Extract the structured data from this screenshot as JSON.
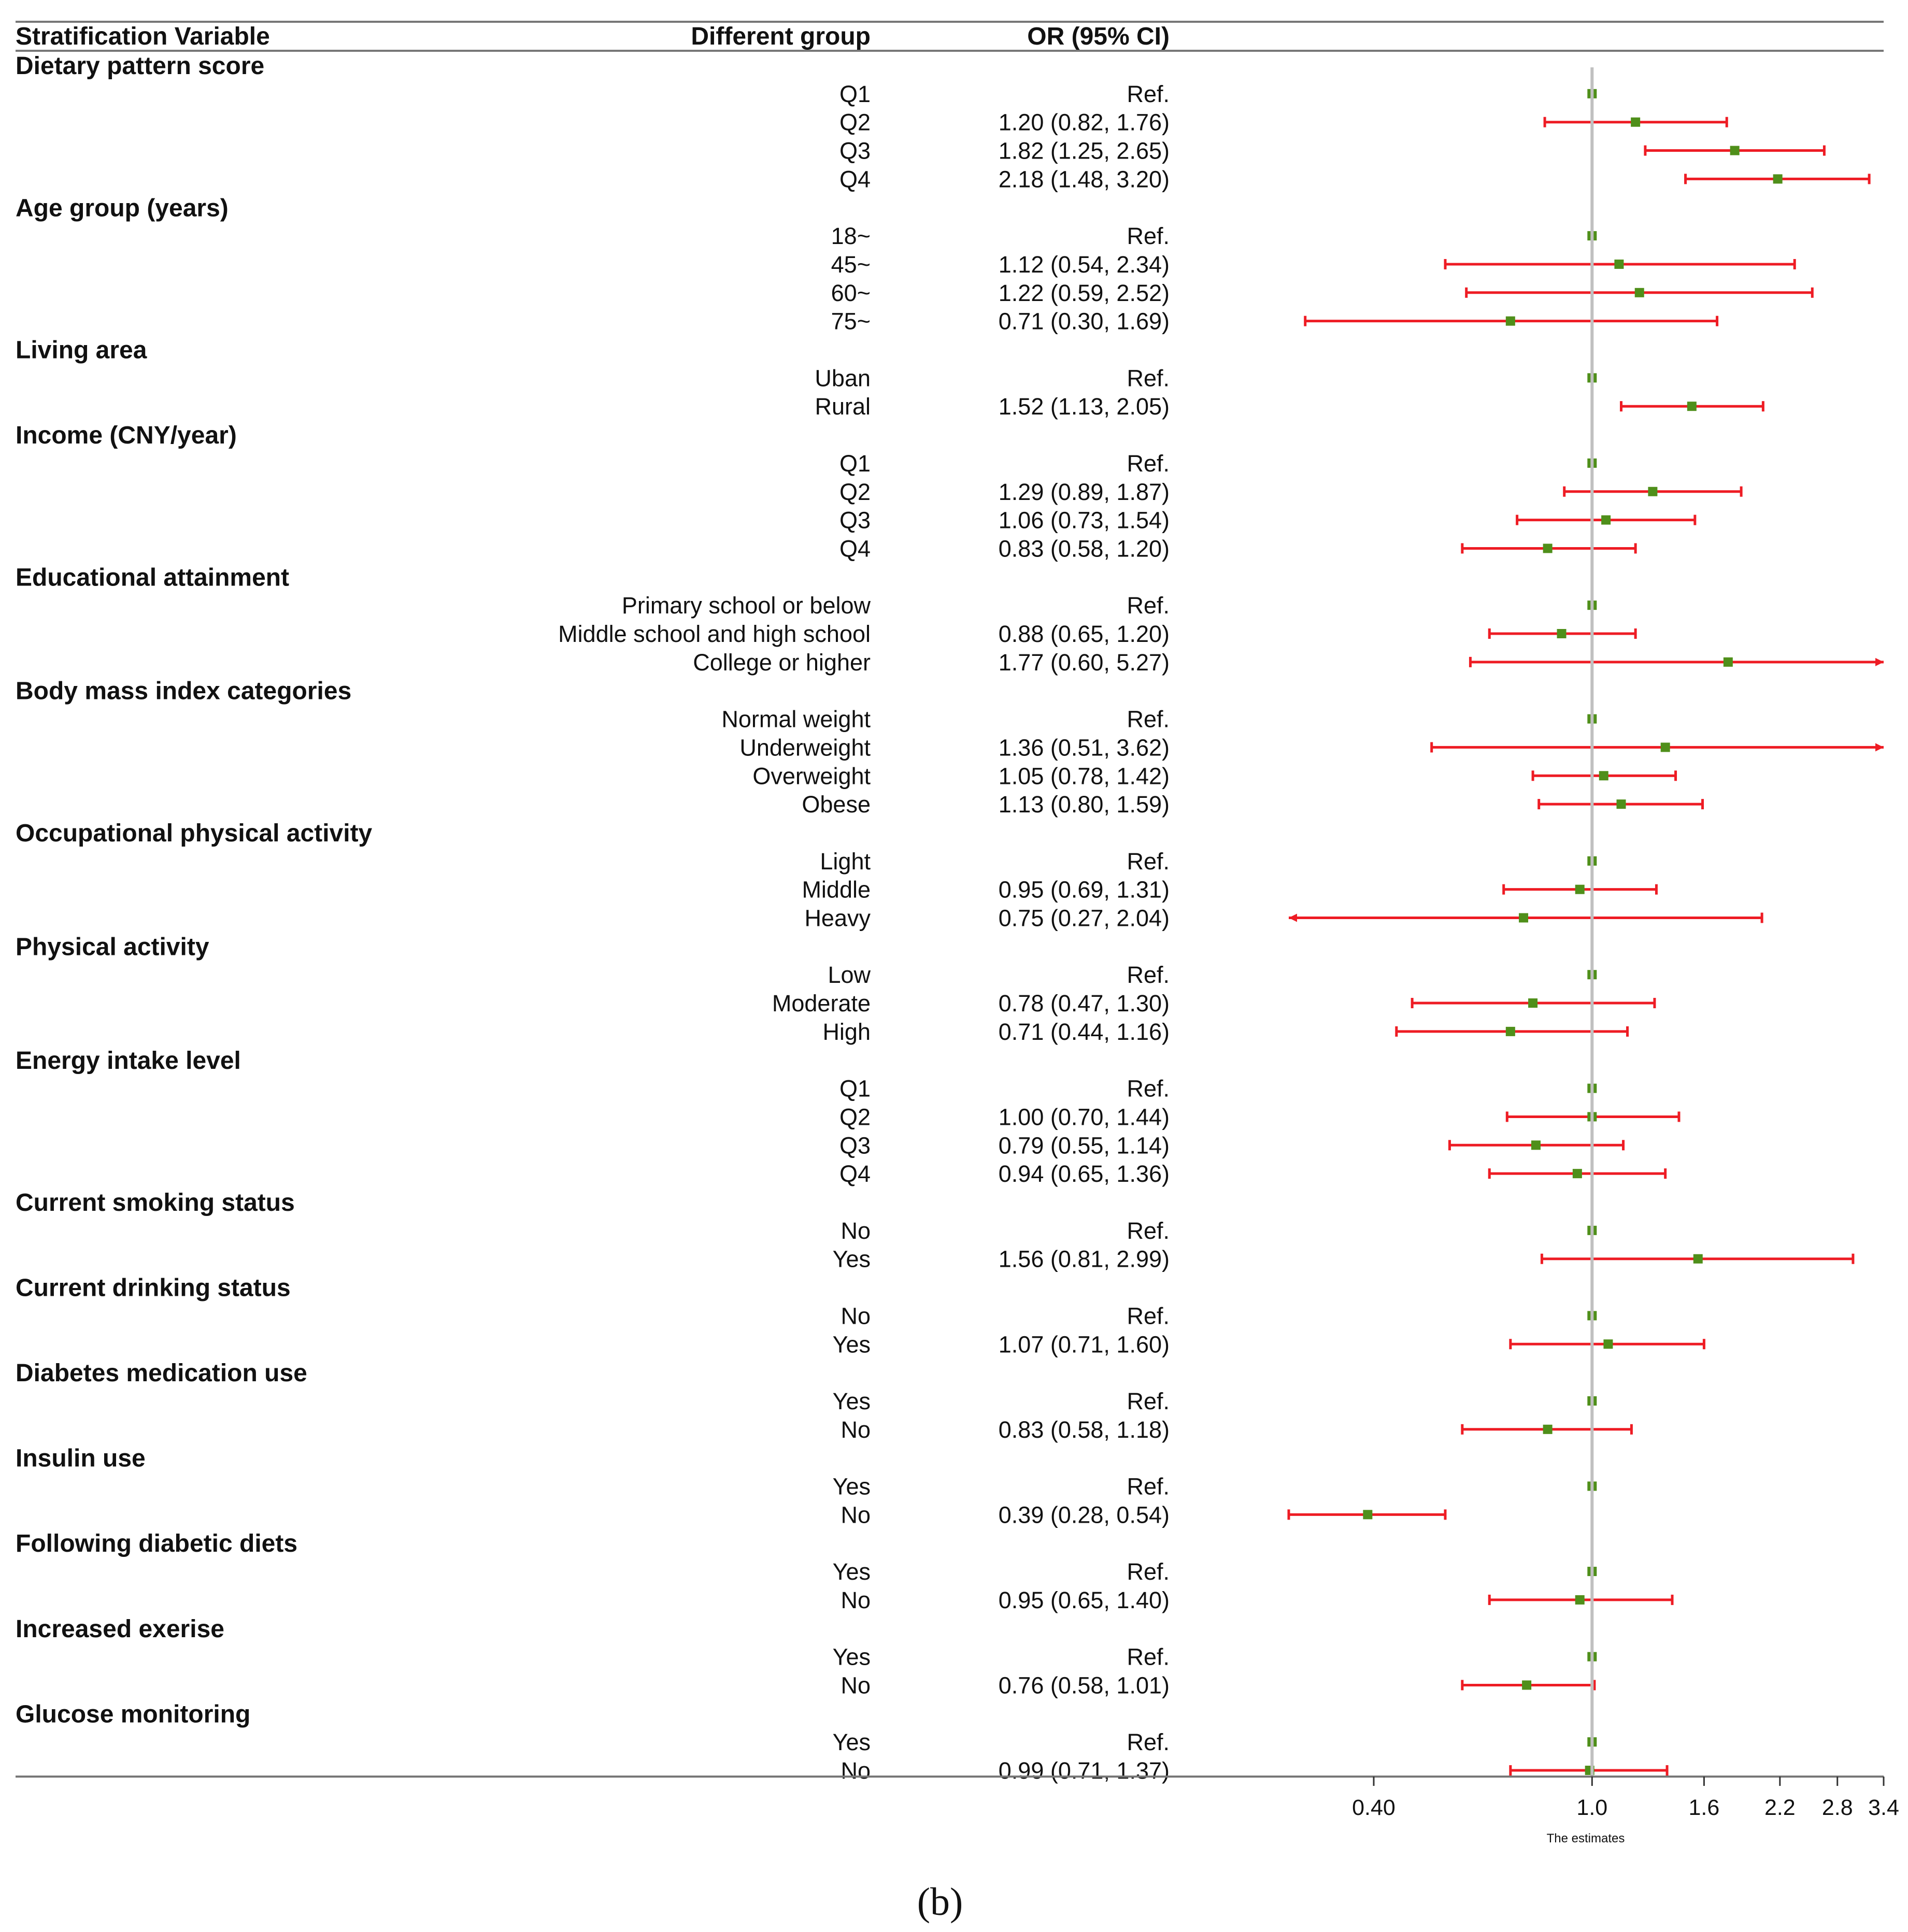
{
  "chart_data": {
    "type": "forest",
    "headers": {
      "variable": "Stratification Variable",
      "group": "Different group",
      "or": "OR (95% CI)"
    },
    "xlabel": "The estimates",
    "x_scale": "log",
    "xlim": [
      0.28,
      3.4
    ],
    "reference_line": 1.0,
    "x_ticks": [
      {
        "value": 0.4,
        "label": "0.40"
      },
      {
        "value": 1.0,
        "label": "1.0"
      },
      {
        "value": 1.6,
        "label": "1.6"
      },
      {
        "value": 2.2,
        "label": "2.2"
      },
      {
        "value": 2.8,
        "label": "2.8"
      },
      {
        "value": 3.4,
        "label": "3.4"
      }
    ],
    "panel_label": "(b)",
    "colors": {
      "point": "#4f8f1a",
      "ci": "#ee1c24",
      "refline": "#c0c0c0",
      "rule": "#777777"
    },
    "categories": [
      {
        "name": "Dietary pattern score",
        "rows": [
          {
            "group": "Q1",
            "or": "Ref.",
            "est": 1.0
          },
          {
            "group": "Q2",
            "or": "1.20 (0.82, 1.76)",
            "est": 1.2,
            "lo": 0.82,
            "hi": 1.76
          },
          {
            "group": "Q3",
            "or": "1.82 (1.25, 2.65)",
            "est": 1.82,
            "lo": 1.25,
            "hi": 2.65
          },
          {
            "group": "Q4",
            "or": "2.18 (1.48, 3.20)",
            "est": 2.18,
            "lo": 1.48,
            "hi": 3.2
          }
        ]
      },
      {
        "name": "Age group (years)",
        "rows": [
          {
            "group": "18~",
            "or": "Ref.",
            "est": 1.0
          },
          {
            "group": "45~",
            "or": "1.12 (0.54, 2.34)",
            "est": 1.12,
            "lo": 0.54,
            "hi": 2.34
          },
          {
            "group": "60~",
            "or": "1.22 (0.59, 2.52)",
            "est": 1.22,
            "lo": 0.59,
            "hi": 2.52
          },
          {
            "group": "75~",
            "or": "0.71 (0.30, 1.69)",
            "est": 0.71,
            "lo": 0.3,
            "hi": 1.69
          }
        ]
      },
      {
        "name": "Living area",
        "rows": [
          {
            "group": "Uban",
            "or": "Ref.",
            "est": 1.0
          },
          {
            "group": "Rural",
            "or": "1.52 (1.13, 2.05)",
            "est": 1.52,
            "lo": 1.13,
            "hi": 2.05
          }
        ]
      },
      {
        "name": "Income (CNY/year)",
        "rows": [
          {
            "group": "Q1",
            "or": "Ref.",
            "est": 1.0
          },
          {
            "group": "Q2",
            "or": "1.29 (0.89, 1.87)",
            "est": 1.29,
            "lo": 0.89,
            "hi": 1.87
          },
          {
            "group": "Q3",
            "or": "1.06 (0.73, 1.54)",
            "est": 1.06,
            "lo": 0.73,
            "hi": 1.54
          },
          {
            "group": "Q4",
            "or": "0.83 (0.58, 1.20)",
            "est": 0.83,
            "lo": 0.58,
            "hi": 1.2
          }
        ]
      },
      {
        "name": "Educational attainment",
        "rows": [
          {
            "group": "Primary school or below",
            "or": "Ref.",
            "est": 1.0
          },
          {
            "group": "Middle school and high school",
            "or": "0.88 (0.65, 1.20)",
            "est": 0.88,
            "lo": 0.65,
            "hi": 1.2
          },
          {
            "group": "College or higher",
            "or": "1.77 (0.60, 5.27)",
            "est": 1.77,
            "lo": 0.6,
            "hi": 5.27
          }
        ]
      },
      {
        "name": "Body mass index categories",
        "rows": [
          {
            "group": "Normal weight",
            "or": "Ref.",
            "est": 1.0
          },
          {
            "group": "Underweight",
            "or": "1.36 (0.51, 3.62)",
            "est": 1.36,
            "lo": 0.51,
            "hi": 3.62
          },
          {
            "group": "Overweight",
            "or": "1.05 (0.78, 1.42)",
            "est": 1.05,
            "lo": 0.78,
            "hi": 1.42
          },
          {
            "group": "Obese",
            "or": "1.13 (0.80, 1.59)",
            "est": 1.13,
            "lo": 0.8,
            "hi": 1.59
          }
        ]
      },
      {
        "name": "Occupational physical activity",
        "rows": [
          {
            "group": "Light",
            "or": "Ref.",
            "est": 1.0
          },
          {
            "group": "Middle",
            "or": "0.95 (0.69, 1.31)",
            "est": 0.95,
            "lo": 0.69,
            "hi": 1.31
          },
          {
            "group": "Heavy",
            "or": "0.75 (0.27, 2.04)",
            "est": 0.75,
            "lo": 0.27,
            "hi": 2.04
          }
        ]
      },
      {
        "name": "Physical activity",
        "rows": [
          {
            "group": "Low",
            "or": "Ref.",
            "est": 1.0
          },
          {
            "group": "Moderate",
            "or": "0.78 (0.47, 1.30)",
            "est": 0.78,
            "lo": 0.47,
            "hi": 1.3
          },
          {
            "group": "High",
            "or": "0.71 (0.44, 1.16)",
            "est": 0.71,
            "lo": 0.44,
            "hi": 1.16
          }
        ]
      },
      {
        "name": "Energy intake level",
        "rows": [
          {
            "group": "Q1",
            "or": "Ref.",
            "est": 1.0
          },
          {
            "group": "Q2",
            "or": "1.00 (0.70, 1.44)",
            "est": 1.0,
            "lo": 0.7,
            "hi": 1.44
          },
          {
            "group": "Q3",
            "or": "0.79 (0.55, 1.14)",
            "est": 0.79,
            "lo": 0.55,
            "hi": 1.14
          },
          {
            "group": "Q4",
            "or": "0.94 (0.65, 1.36)",
            "est": 0.94,
            "lo": 0.65,
            "hi": 1.36
          }
        ]
      },
      {
        "name": "Current smoking status",
        "rows": [
          {
            "group": "No",
            "or": "Ref.",
            "est": 1.0
          },
          {
            "group": "Yes",
            "or": "1.56 (0.81, 2.99)",
            "est": 1.56,
            "lo": 0.81,
            "hi": 2.99
          }
        ]
      },
      {
        "name": "Current drinking status",
        "rows": [
          {
            "group": "No",
            "or": "Ref.",
            "est": 1.0
          },
          {
            "group": "Yes",
            "or": "1.07 (0.71, 1.60)",
            "est": 1.07,
            "lo": 0.71,
            "hi": 1.6
          }
        ]
      },
      {
        "name": "Diabetes medication use",
        "rows": [
          {
            "group": "Yes",
            "or": "Ref.",
            "est": 1.0
          },
          {
            "group": "No",
            "or": "0.83 (0.58, 1.18)",
            "est": 0.83,
            "lo": 0.58,
            "hi": 1.18
          }
        ]
      },
      {
        "name": "Insulin use",
        "rows": [
          {
            "group": "Yes",
            "or": "Ref.",
            "est": 1.0
          },
          {
            "group": "No",
            "or": "0.39 (0.28, 0.54)",
            "est": 0.39,
            "lo": 0.28,
            "hi": 0.54
          }
        ]
      },
      {
        "name": "Following diabetic diets",
        "rows": [
          {
            "group": "Yes",
            "or": "Ref.",
            "est": 1.0
          },
          {
            "group": "No",
            "or": "0.95 (0.65, 1.40)",
            "est": 0.95,
            "lo": 0.65,
            "hi": 1.4
          }
        ]
      },
      {
        "name": "Increased exerise",
        "rows": [
          {
            "group": "Yes",
            "or": "Ref.",
            "est": 1.0
          },
          {
            "group": "No",
            "or": "0.76 (0.58, 1.01)",
            "est": 0.76,
            "lo": 0.58,
            "hi": 1.01
          }
        ]
      },
      {
        "name": "Glucose monitoring",
        "rows": [
          {
            "group": "Yes",
            "or": "Ref.",
            "est": 1.0
          },
          {
            "group": "No",
            "or": "0.99 (0.71, 1.37)",
            "est": 0.99,
            "lo": 0.71,
            "hi": 1.37
          }
        ]
      }
    ]
  }
}
